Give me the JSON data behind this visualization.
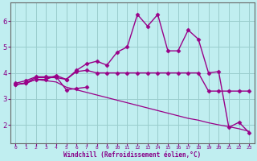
{
  "bg_color": "#c0eef0",
  "line_color": "#990088",
  "grid_color": "#99cccc",
  "xlabel": "Windchill (Refroidissement éolien,°C)",
  "tick_color": "#880088",
  "ylabel_ticks": [
    2,
    3,
    4,
    5,
    6
  ],
  "xlim": [
    -0.5,
    23.5
  ],
  "ylim": [
    1.3,
    6.7
  ],
  "series": [
    {
      "x": [
        0,
        1,
        2,
        3,
        4,
        5,
        6,
        7
      ],
      "y": [
        3.6,
        3.7,
        3.85,
        3.85,
        3.85,
        3.35,
        3.4,
        3.45
      ],
      "marker": "D",
      "markersize": 2.5,
      "linewidth": 1.0
    },
    {
      "x": [
        0,
        1,
        2,
        3,
        4,
        5,
        6,
        7,
        8,
        9,
        10,
        11,
        12,
        13,
        14,
        15,
        16,
        17,
        18,
        19,
        20,
        21,
        22,
        23
      ],
      "y": [
        3.55,
        3.62,
        3.82,
        3.82,
        3.82,
        3.75,
        4.1,
        4.35,
        4.45,
        4.3,
        4.8,
        5.0,
        6.25,
        5.8,
        6.25,
        4.85,
        4.85,
        5.65,
        5.3,
        4.0,
        4.05,
        1.9,
        2.1,
        1.7
      ],
      "marker": "D",
      "markersize": 2.5,
      "linewidth": 1.0
    },
    {
      "x": [
        0,
        1,
        2,
        3,
        4,
        5,
        6,
        7,
        8,
        9,
        10,
        11,
        12,
        13,
        14,
        15,
        16,
        17,
        18,
        19,
        20,
        21,
        22,
        23
      ],
      "y": [
        3.55,
        3.6,
        3.75,
        3.75,
        3.9,
        3.75,
        4.05,
        4.1,
        4.0,
        4.0,
        4.0,
        4.0,
        4.0,
        4.0,
        4.0,
        4.0,
        4.0,
        4.0,
        4.0,
        3.3,
        3.3,
        3.3,
        3.3,
        3.3
      ],
      "marker": "D",
      "markersize": 2.5,
      "linewidth": 1.0
    },
    {
      "x": [
        0,
        1,
        2,
        3,
        4,
        5,
        6,
        7,
        8,
        9,
        10,
        11,
        12,
        13,
        14,
        15,
        16,
        17,
        18,
        19,
        20,
        21,
        22,
        23
      ],
      "y": [
        3.55,
        3.6,
        3.75,
        3.7,
        3.65,
        3.45,
        3.35,
        3.25,
        3.15,
        3.05,
        2.95,
        2.85,
        2.75,
        2.65,
        2.55,
        2.45,
        2.35,
        2.25,
        2.18,
        2.08,
        2.0,
        1.93,
        1.85,
        1.75
      ],
      "marker": null,
      "markersize": 0,
      "linewidth": 0.9
    }
  ]
}
